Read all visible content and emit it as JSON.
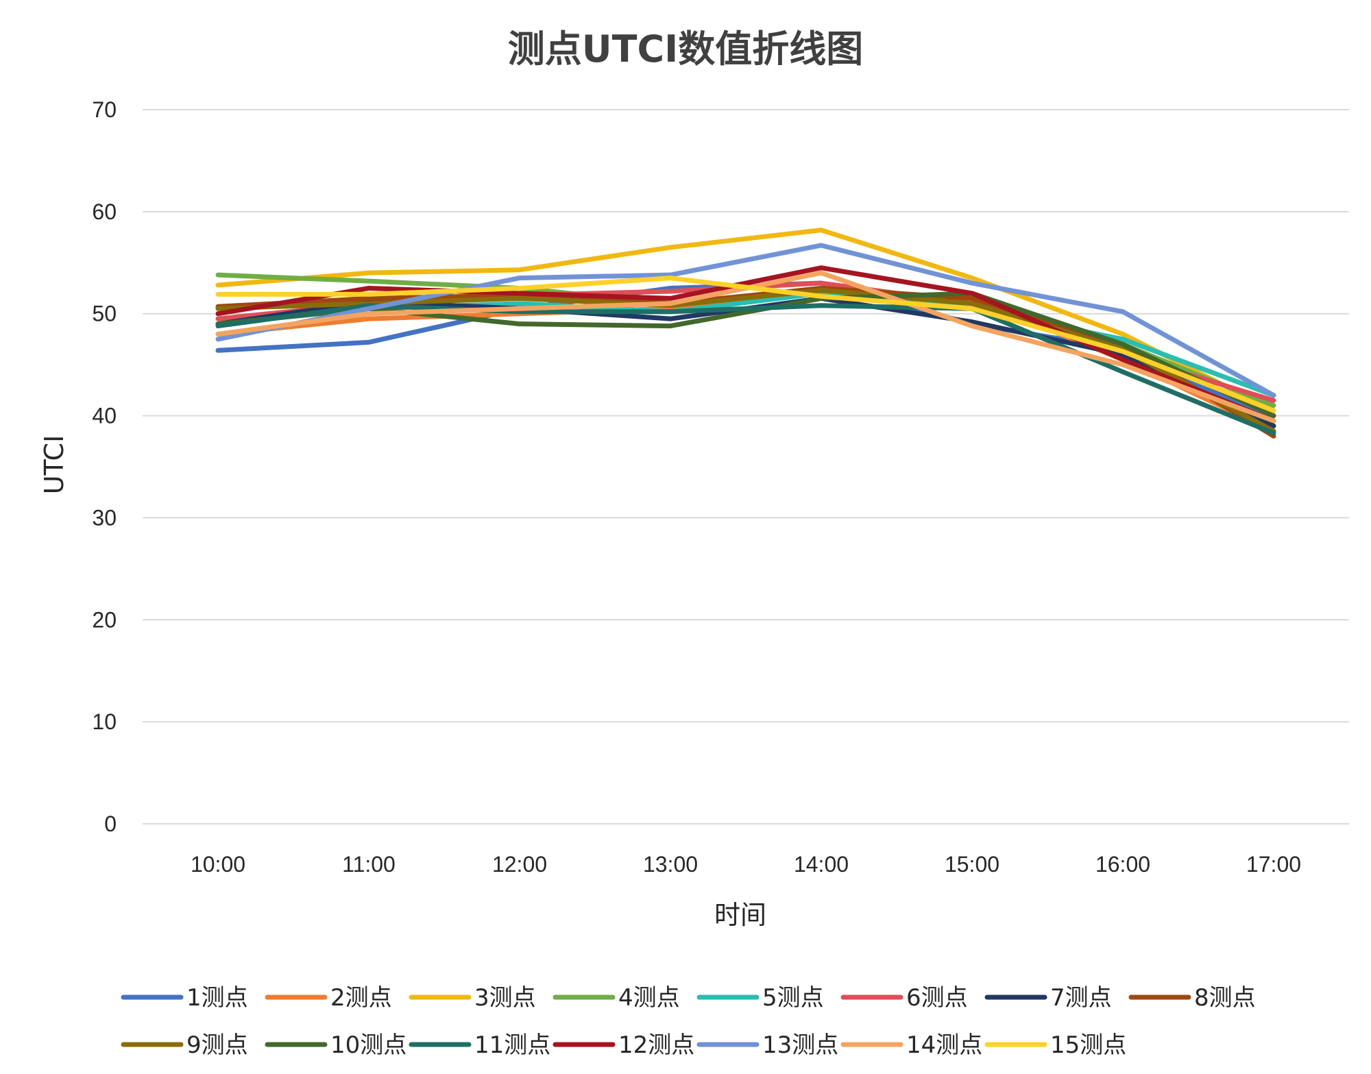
{
  "chart_data": {
    "type": "line",
    "title": "测点UTCI数值折线图",
    "xlabel": "时间",
    "ylabel": "UTCI",
    "ylim": [
      0,
      70
    ],
    "yticks": [
      0,
      10,
      20,
      30,
      40,
      50,
      60,
      70
    ],
    "categories": [
      "10:00",
      "11:00",
      "12:00",
      "13:00",
      "14:00",
      "15:00",
      "16:00",
      "17:00"
    ],
    "grid": true,
    "legend_position": "bottom",
    "series": [
      {
        "name": "1测点",
        "color": "#4472c4",
        "values": [
          46.4,
          47.2,
          50.5,
          52.5,
          53.0,
          49.0,
          46.5,
          39.5
        ]
      },
      {
        "name": "2测点",
        "color": "#ed7d31",
        "values": [
          48.0,
          49.5,
          50.0,
          50.5,
          52.0,
          51.5,
          45.5,
          38.5
        ]
      },
      {
        "name": "3测点",
        "color": "#f1b812",
        "values": [
          52.8,
          54.0,
          54.3,
          56.5,
          58.2,
          53.5,
          48.0,
          40.5
        ]
      },
      {
        "name": "4测点",
        "color": "#70ad47",
        "values": [
          53.8,
          53.2,
          52.5,
          51.0,
          52.0,
          51.0,
          47.0,
          41.0
        ]
      },
      {
        "name": "5测点",
        "color": "#2bbdb0",
        "values": [
          49.0,
          50.5,
          51.0,
          50.2,
          52.0,
          50.5,
          47.5,
          42.0
        ]
      },
      {
        "name": "6测点",
        "color": "#e04e57",
        "values": [
          49.5,
          51.0,
          51.8,
          52.2,
          53.0,
          51.0,
          46.0,
          41.5
        ]
      },
      {
        "name": "7测点",
        "color": "#203864",
        "values": [
          49.0,
          51.2,
          50.5,
          49.5,
          51.5,
          49.2,
          46.0,
          39.0
        ]
      },
      {
        "name": "8测点",
        "color": "#9e480e",
        "values": [
          50.7,
          51.5,
          51.8,
          51.0,
          52.5,
          51.5,
          47.0,
          38.0
        ]
      },
      {
        "name": "9测点",
        "color": "#8a6d0b",
        "values": [
          50.5,
          51.0,
          51.5,
          50.8,
          52.3,
          51.0,
          46.5,
          38.5
        ]
      },
      {
        "name": "10测点",
        "color": "#43682b",
        "values": [
          49.0,
          50.5,
          49.0,
          48.8,
          51.5,
          52.0,
          47.0,
          40.0
        ]
      },
      {
        "name": "11测点",
        "color": "#1f6e66",
        "values": [
          48.8,
          50.8,
          50.2,
          50.2,
          50.8,
          50.5,
          44.3,
          38.3
        ]
      },
      {
        "name": "12测点",
        "color": "#a5141f",
        "values": [
          50.0,
          52.5,
          52.0,
          51.5,
          54.5,
          52.0,
          45.5,
          39.5
        ]
      },
      {
        "name": "13测点",
        "color": "#7193d6",
        "values": [
          47.5,
          50.5,
          53.5,
          53.8,
          56.7,
          53.0,
          50.2,
          42.0
        ]
      },
      {
        "name": "14测点",
        "color": "#f4a460",
        "values": [
          48.0,
          50.0,
          50.5,
          51.0,
          54.0,
          48.8,
          45.0,
          39.5
        ]
      },
      {
        "name": "15测点",
        "color": "#ffd129",
        "values": [
          51.9,
          51.9,
          52.5,
          53.5,
          51.7,
          50.5,
          46.3,
          40.5
        ]
      }
    ]
  }
}
